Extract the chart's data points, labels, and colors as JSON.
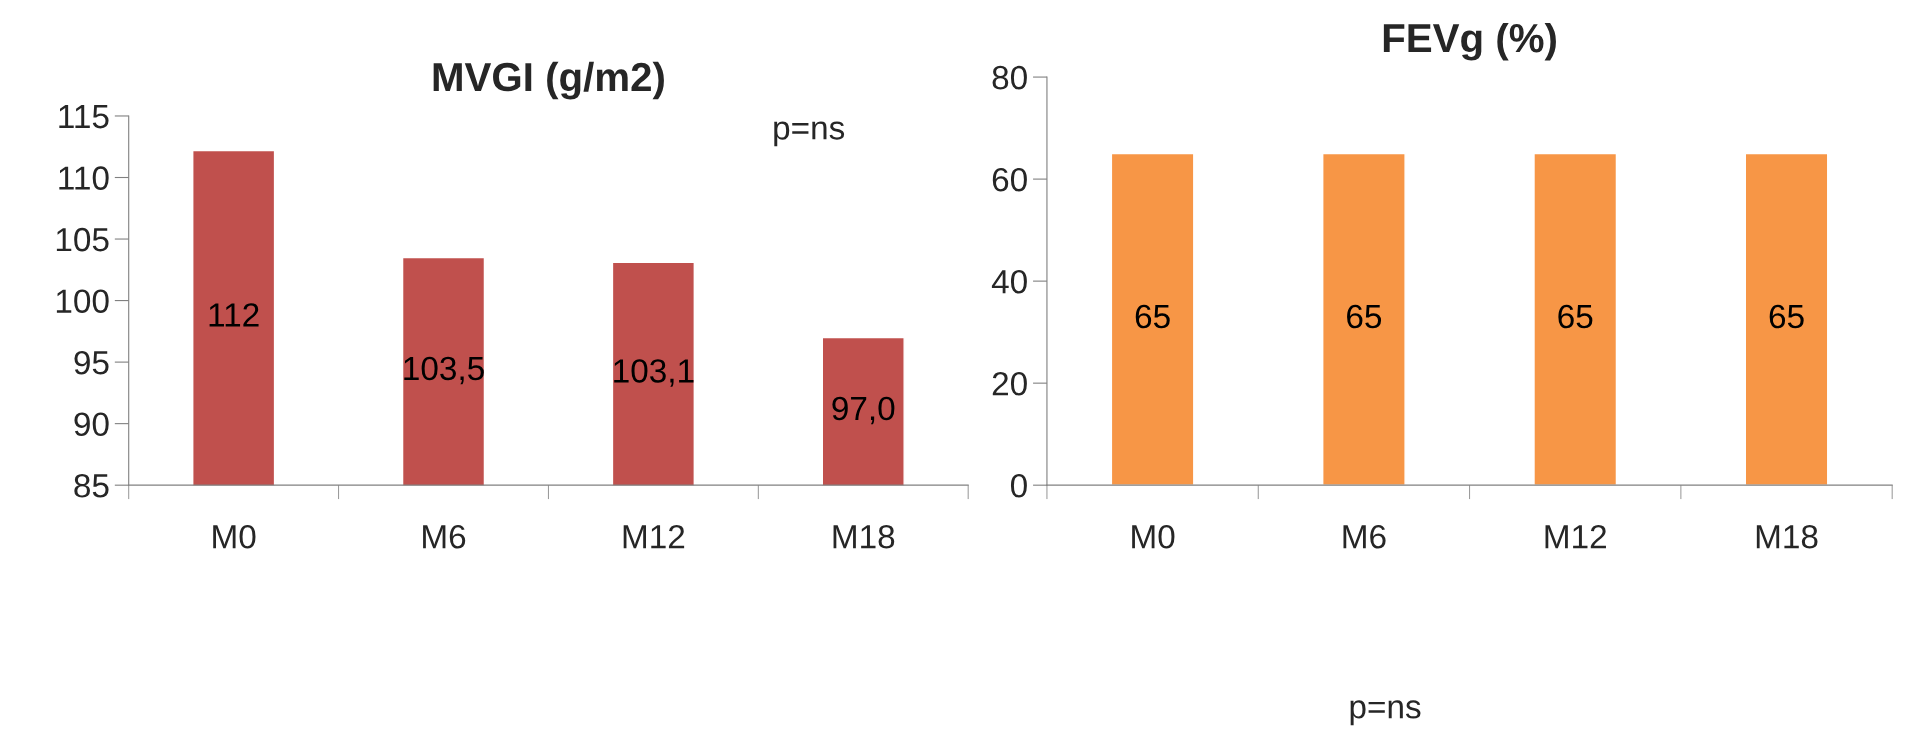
{
  "chart_data": [
    {
      "type": "bar",
      "title": "MVGI (g/m2)",
      "categories": [
        "M0",
        "M6",
        "M12",
        "M18"
      ],
      "values": [
        112.2,
        103.5,
        103.1,
        97.0
      ],
      "value_labels": [
        "112",
        "103,5",
        "103,1",
        "97,0"
      ],
      "color": "#c0504d",
      "ylim": [
        85,
        115
      ],
      "yticks": [
        85,
        90,
        95,
        100,
        105,
        110,
        115
      ],
      "grid": false,
      "annotations": [
        "p=ns"
      ]
    },
    {
      "type": "bar",
      "title": "FEVg (%)",
      "categories": [
        "M0",
        "M6",
        "M12",
        "M18"
      ],
      "values": [
        65,
        65,
        65,
        65
      ],
      "data_labels": true,
      "color": "#f79646",
      "ylim": [
        0,
        80
      ],
      "yticks": [
        0,
        20,
        40,
        60,
        80
      ],
      "grid": false,
      "annotations": [
        "p=ns"
      ]
    }
  ]
}
